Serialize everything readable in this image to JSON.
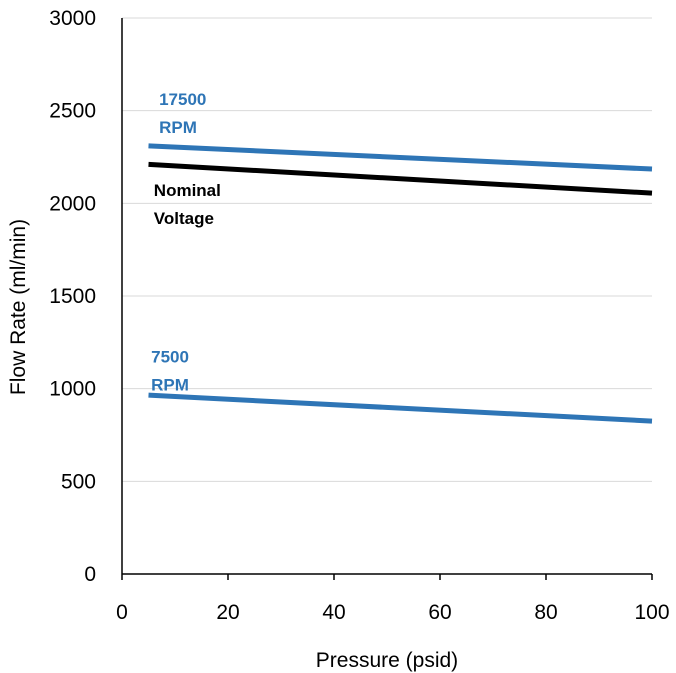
{
  "chart_data": {
    "type": "line",
    "title": "",
    "xlabel": "Pressure (psid)",
    "ylabel": "Flow Rate (ml/min)",
    "xlim": [
      0,
      100
    ],
    "ylim": [
      0,
      3000
    ],
    "xticks": [
      "0",
      "20",
      "40",
      "60",
      "80",
      "100"
    ],
    "yticks": [
      "0",
      "500",
      "1000",
      "1500",
      "2000",
      "2500",
      "3000"
    ],
    "grid": "horizontal",
    "series": [
      {
        "color": "#2E75B6",
        "x": [
          5,
          100
        ],
        "y": [
          2310,
          2185
        ]
      },
      {
        "color": "#000000",
        "x": [
          5,
          100
        ],
        "y": [
          2210,
          2055
        ]
      },
      {
        "color": "#2E75B6",
        "x": [
          5,
          100
        ],
        "y": [
          965,
          825
        ]
      }
    ],
    "annotations": [
      {
        "lines": [
          "17500",
          "RPM"
        ],
        "color": "#2E75B6",
        "x": 7,
        "y": 2530
      },
      {
        "lines": [
          "Nominal",
          "Voltage"
        ],
        "color": "#000000",
        "x": 6,
        "y": 2040
      },
      {
        "lines": [
          "7500",
          "RPM"
        ],
        "color": "#2E75B6",
        "x": 5.5,
        "y": 1140
      }
    ]
  }
}
